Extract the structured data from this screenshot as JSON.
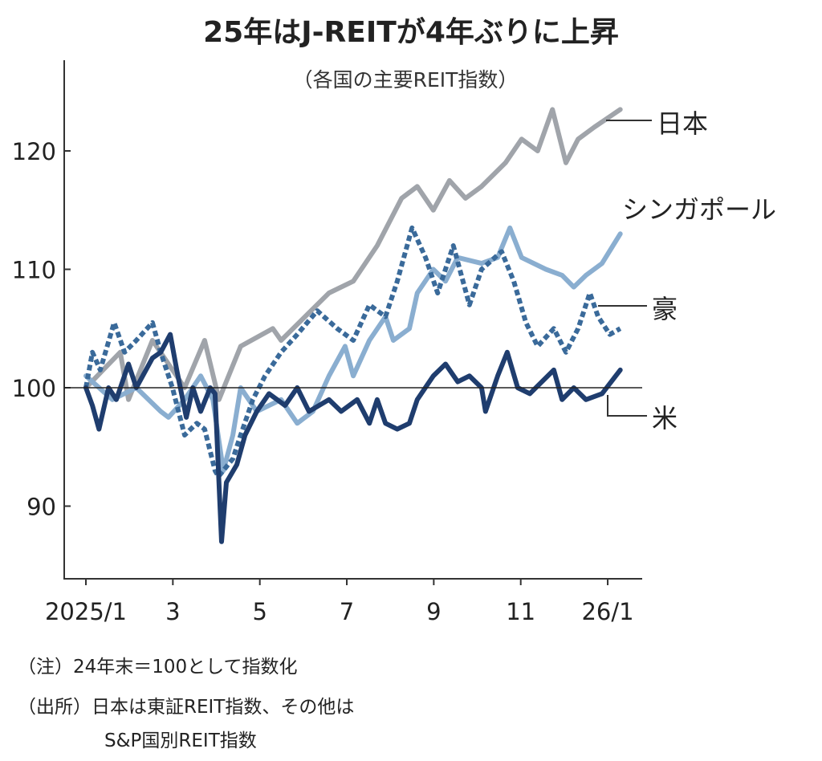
{
  "chart_data": {
    "type": "line",
    "title": "25年はJ-REITが4年ぶりに上昇",
    "subtitle": "（各国の主要REIT指数）",
    "x_unit": "months since 2025/1",
    "xlim": [
      0,
      12.6
    ],
    "ylim": [
      84,
      126
    ],
    "baseline": 100,
    "x_ticks": [
      {
        "m": 0,
        "label": "2025/1"
      },
      {
        "m": 2,
        "label": "3"
      },
      {
        "m": 4,
        "label": "5"
      },
      {
        "m": 6,
        "label": "7"
      },
      {
        "m": 8,
        "label": "9"
      },
      {
        "m": 10,
        "label": "11"
      },
      {
        "m": 12,
        "label": "26/1"
      }
    ],
    "y_ticks": [
      {
        "v": 90,
        "label": "90"
      },
      {
        "v": 100,
        "label": "100"
      },
      {
        "v": 110,
        "label": "110"
      },
      {
        "v": 120,
        "label": "120"
      }
    ],
    "series": [
      {
        "name": "日本",
        "color": "#a0a4aa",
        "dashed": false,
        "points": [
          [
            0,
            100
          ],
          [
            0.79,
            103
          ],
          [
            0.98,
            99
          ],
          [
            1.53,
            104
          ],
          [
            2.27,
            100
          ],
          [
            2.73,
            104
          ],
          [
            3.06,
            99
          ],
          [
            3.56,
            103.5
          ],
          [
            4.3,
            105
          ],
          [
            4.49,
            104
          ],
          [
            5.04,
            106
          ],
          [
            5.59,
            108
          ],
          [
            6.15,
            109
          ],
          [
            6.7,
            112
          ],
          [
            7.26,
            116
          ],
          [
            7.62,
            117
          ],
          [
            7.99,
            115
          ],
          [
            8.36,
            117.5
          ],
          [
            8.73,
            116
          ],
          [
            9.1,
            117
          ],
          [
            9.65,
            119
          ],
          [
            10.02,
            121
          ],
          [
            10.39,
            120
          ],
          [
            10.73,
            123.5
          ],
          [
            11.04,
            119
          ],
          [
            11.32,
            121
          ],
          [
            11.69,
            122
          ],
          [
            12.29,
            123.5
          ]
        ]
      },
      {
        "name": "シンガポール",
        "color": "#8aaed0",
        "dashed": false,
        "points": [
          [
            0,
            101
          ],
          [
            0.61,
            99
          ],
          [
            1.16,
            100
          ],
          [
            1.72,
            98
          ],
          [
            1.9,
            97.5
          ],
          [
            2.27,
            99
          ],
          [
            2.64,
            101
          ],
          [
            2.92,
            99
          ],
          [
            3.16,
            93
          ],
          [
            3.38,
            96
          ],
          [
            3.56,
            100
          ],
          [
            3.93,
            98
          ],
          [
            4.49,
            99
          ],
          [
            4.86,
            97
          ],
          [
            5.22,
            98
          ],
          [
            5.59,
            101
          ],
          [
            5.96,
            103.5
          ],
          [
            6.15,
            101
          ],
          [
            6.52,
            104
          ],
          [
            6.89,
            106
          ],
          [
            7.07,
            104
          ],
          [
            7.44,
            105
          ],
          [
            7.62,
            108
          ],
          [
            7.99,
            110
          ],
          [
            8.27,
            109
          ],
          [
            8.55,
            111
          ],
          [
            9.1,
            110.5
          ],
          [
            9.47,
            111
          ],
          [
            9.75,
            113.5
          ],
          [
            10.02,
            111
          ],
          [
            10.58,
            110
          ],
          [
            10.95,
            109.5
          ],
          [
            11.22,
            108.5
          ],
          [
            11.5,
            109.5
          ],
          [
            11.87,
            110.5
          ],
          [
            12.29,
            113
          ]
        ]
      },
      {
        "name": "豪",
        "color": "#3a6a9a",
        "dashed": true,
        "points": [
          [
            0,
            100
          ],
          [
            0.15,
            103
          ],
          [
            0.33,
            101.5
          ],
          [
            0.65,
            105.5
          ],
          [
            0.89,
            103
          ],
          [
            1.16,
            104
          ],
          [
            1.53,
            105.5
          ],
          [
            1.72,
            103
          ],
          [
            1.99,
            100
          ],
          [
            2.27,
            96
          ],
          [
            2.55,
            97
          ],
          [
            2.73,
            96.5
          ],
          [
            2.97,
            93
          ],
          [
            3.05,
            92.5
          ],
          [
            3.38,
            94
          ],
          [
            3.56,
            96
          ],
          [
            3.84,
            99
          ],
          [
            4.12,
            101
          ],
          [
            4.49,
            103
          ],
          [
            4.86,
            104.5
          ],
          [
            5.32,
            106.5
          ],
          [
            5.78,
            105
          ],
          [
            6.15,
            104
          ],
          [
            6.52,
            107
          ],
          [
            6.89,
            106
          ],
          [
            7.16,
            109
          ],
          [
            7.5,
            113.5
          ],
          [
            7.81,
            111
          ],
          [
            8.09,
            108
          ],
          [
            8.45,
            112
          ],
          [
            8.82,
            107
          ],
          [
            9.1,
            110
          ],
          [
            9.56,
            111.5
          ],
          [
            9.84,
            109
          ],
          [
            10.12,
            105.5
          ],
          [
            10.39,
            103.5
          ],
          [
            10.76,
            105
          ],
          [
            11.04,
            103
          ],
          [
            11.32,
            105
          ],
          [
            11.59,
            108
          ],
          [
            11.78,
            106
          ],
          [
            12.05,
            104.5
          ],
          [
            12.29,
            105
          ]
        ]
      },
      {
        "name": "米",
        "color": "#1f3d6e",
        "dashed": false,
        "points": [
          [
            0,
            100
          ],
          [
            0.15,
            98.5
          ],
          [
            0.3,
            96.5
          ],
          [
            0.52,
            100
          ],
          [
            0.7,
            99
          ],
          [
            0.98,
            102
          ],
          [
            1.16,
            100
          ],
          [
            1.53,
            102.5
          ],
          [
            1.72,
            103
          ],
          [
            1.94,
            104.5
          ],
          [
            2.09,
            101.5
          ],
          [
            2.31,
            97.5
          ],
          [
            2.46,
            100
          ],
          [
            2.64,
            98
          ],
          [
            2.86,
            100
          ],
          [
            2.97,
            99.5
          ],
          [
            3.12,
            87
          ],
          [
            3.23,
            92
          ],
          [
            3.47,
            93.5
          ],
          [
            3.66,
            96
          ],
          [
            3.93,
            98
          ],
          [
            4.21,
            99.5
          ],
          [
            4.58,
            98.5
          ],
          [
            4.86,
            100
          ],
          [
            5.13,
            98
          ],
          [
            5.59,
            99
          ],
          [
            5.87,
            98
          ],
          [
            6.24,
            99
          ],
          [
            6.52,
            97
          ],
          [
            6.7,
            99
          ],
          [
            6.89,
            97
          ],
          [
            7.16,
            96.5
          ],
          [
            7.44,
            97
          ],
          [
            7.62,
            99
          ],
          [
            7.99,
            101
          ],
          [
            8.27,
            102
          ],
          [
            8.55,
            100.5
          ],
          [
            8.82,
            101
          ],
          [
            9.1,
            100
          ],
          [
            9.19,
            98
          ],
          [
            9.47,
            101
          ],
          [
            9.69,
            103
          ],
          [
            9.93,
            100
          ],
          [
            10.21,
            99.5
          ],
          [
            10.76,
            101.5
          ],
          [
            10.95,
            99
          ],
          [
            11.22,
            100
          ],
          [
            11.5,
            99
          ],
          [
            11.87,
            99.5
          ],
          [
            12.29,
            101.5
          ]
        ]
      }
    ],
    "notes": [
      "（注）24年末＝100として指数化",
      "（出所）日本は東証REIT指数、その他は",
      "S&P国別REIT指数"
    ]
  }
}
